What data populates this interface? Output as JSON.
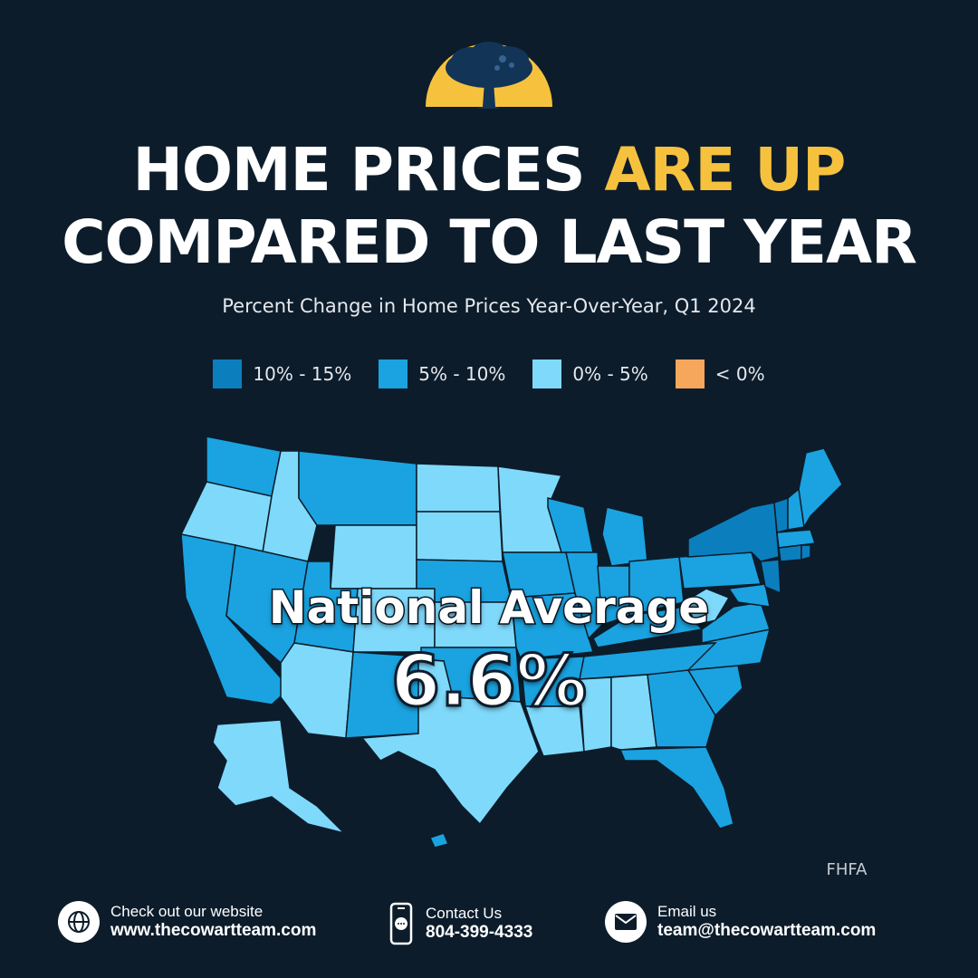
{
  "headline": {
    "line1_white": "HOME PRICES ",
    "line1_accent": "ARE UP",
    "line2": "COMPARED TO LAST YEAR"
  },
  "subtitle": "Percent Change in Home Prices Year-Over-Year, Q1 2024",
  "legend": [
    {
      "label": "10% - 15%",
      "color": "#0b7fbd"
    },
    {
      "label": "5% - 10%",
      "color": "#1aa3e0"
    },
    {
      "label": "0% - 5%",
      "color": "#7fd9fb"
    },
    {
      "label": "< 0%",
      "color": "#f7a75c"
    }
  ],
  "map": {
    "national_label": "National Average",
    "national_value": "6.6%"
  },
  "source": "FHFA",
  "footer": {
    "website": {
      "label": "Check out our website",
      "value": "www.thecowartteam.com",
      "icon": "globe-icon"
    },
    "phone": {
      "label": "Contact Us",
      "value": "804-399-4333",
      "icon": "phone-icon"
    },
    "email": {
      "label": "Email us",
      "value": "team@thecowartteam.com",
      "icon": "envelope-icon"
    }
  },
  "colors": {
    "background": "#0c1c2b",
    "accent": "#f6c23e"
  }
}
